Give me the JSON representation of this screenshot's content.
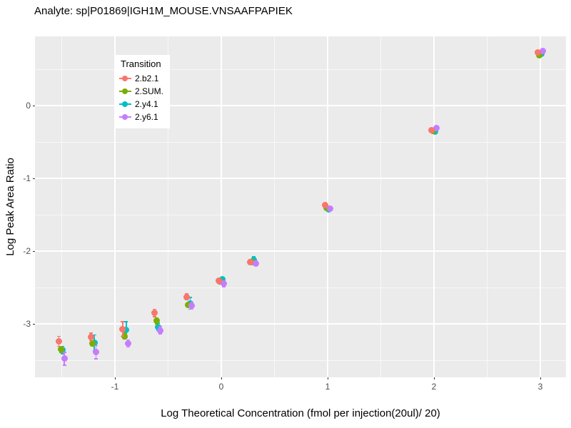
{
  "chart_data": {
    "type": "scatter",
    "title": "Analyte: sp|P01869|IGH1M_MOUSE.VNSAAFPAPIEK",
    "xlabel": "Log Theoretical Concentration (fmol per injection(20ul)/ 20)",
    "ylabel": "Log Peak Area Ratio",
    "legend_title": "Transition",
    "legend_position": "top-left-inside",
    "grid": "on",
    "panel_bg": "#EBEBEB",
    "grid_color": "#FFFFFF",
    "tick_color": "#333333",
    "tick_label_color": "#4D4D4D",
    "xlim": [
      -1.79,
      3.26
    ],
    "ylim": [
      -3.74,
      0.95
    ],
    "x_major_ticks": [
      -1,
      0,
      1,
      2,
      3
    ],
    "x_minor_ticks": [
      -1.5,
      -0.5,
      0.5,
      1.5,
      2.5
    ],
    "y_major_ticks": [
      0,
      -1,
      -2,
      -3
    ],
    "y_minor_ticks": [
      0.5,
      -0.5,
      -1.5,
      -2.5,
      -3.5
    ],
    "x": [
      -1.5,
      -1.2,
      -0.9,
      -0.6,
      -0.3,
      0,
      0.3,
      1,
      2,
      3
    ],
    "series": [
      {
        "name": "2.b2.1",
        "color": "#F8766D",
        "values": [
          -3.24,
          -3.18,
          -3.07,
          -2.85,
          -2.63,
          -2.41,
          -2.15,
          -1.37,
          -0.34,
          0.73
        ],
        "errors": [
          0.07,
          0.05,
          0.1,
          0.05,
          0.04,
          0.03,
          0.03,
          0.02,
          0.02,
          0.02
        ]
      },
      {
        "name": "2.SUM.",
        "color": "#7CAE00",
        "values": [
          -3.35,
          -3.27,
          -3.17,
          -2.96,
          -2.74,
          -2.42,
          -2.15,
          -1.41,
          -0.35,
          0.69
        ],
        "errors": [
          0.04,
          0.04,
          0.04,
          0.04,
          0.03,
          0.03,
          0.03,
          0.02,
          0.02,
          0.02
        ]
      },
      {
        "name": "2.y4.1",
        "color": "#00BFC4",
        "values": [
          -3.36,
          -3.26,
          -3.08,
          -3.04,
          -2.72,
          -2.39,
          -2.12,
          -1.43,
          -0.36,
          0.71
        ],
        "errors": [
          0.05,
          0.11,
          0.11,
          0.05,
          0.08,
          0.03,
          0.04,
          0.02,
          0.02,
          0.02
        ]
      },
      {
        "name": "2.y6.1",
        "color": "#C77CFF",
        "values": [
          -3.48,
          -3.39,
          -3.27,
          -3.09,
          -2.75,
          -2.45,
          -2.17,
          -1.42,
          -0.31,
          0.75
        ],
        "errors": [
          0.09,
          0.09,
          0.05,
          0.05,
          0.05,
          0.04,
          0.03,
          0.02,
          0.02,
          0.02
        ]
      }
    ]
  }
}
